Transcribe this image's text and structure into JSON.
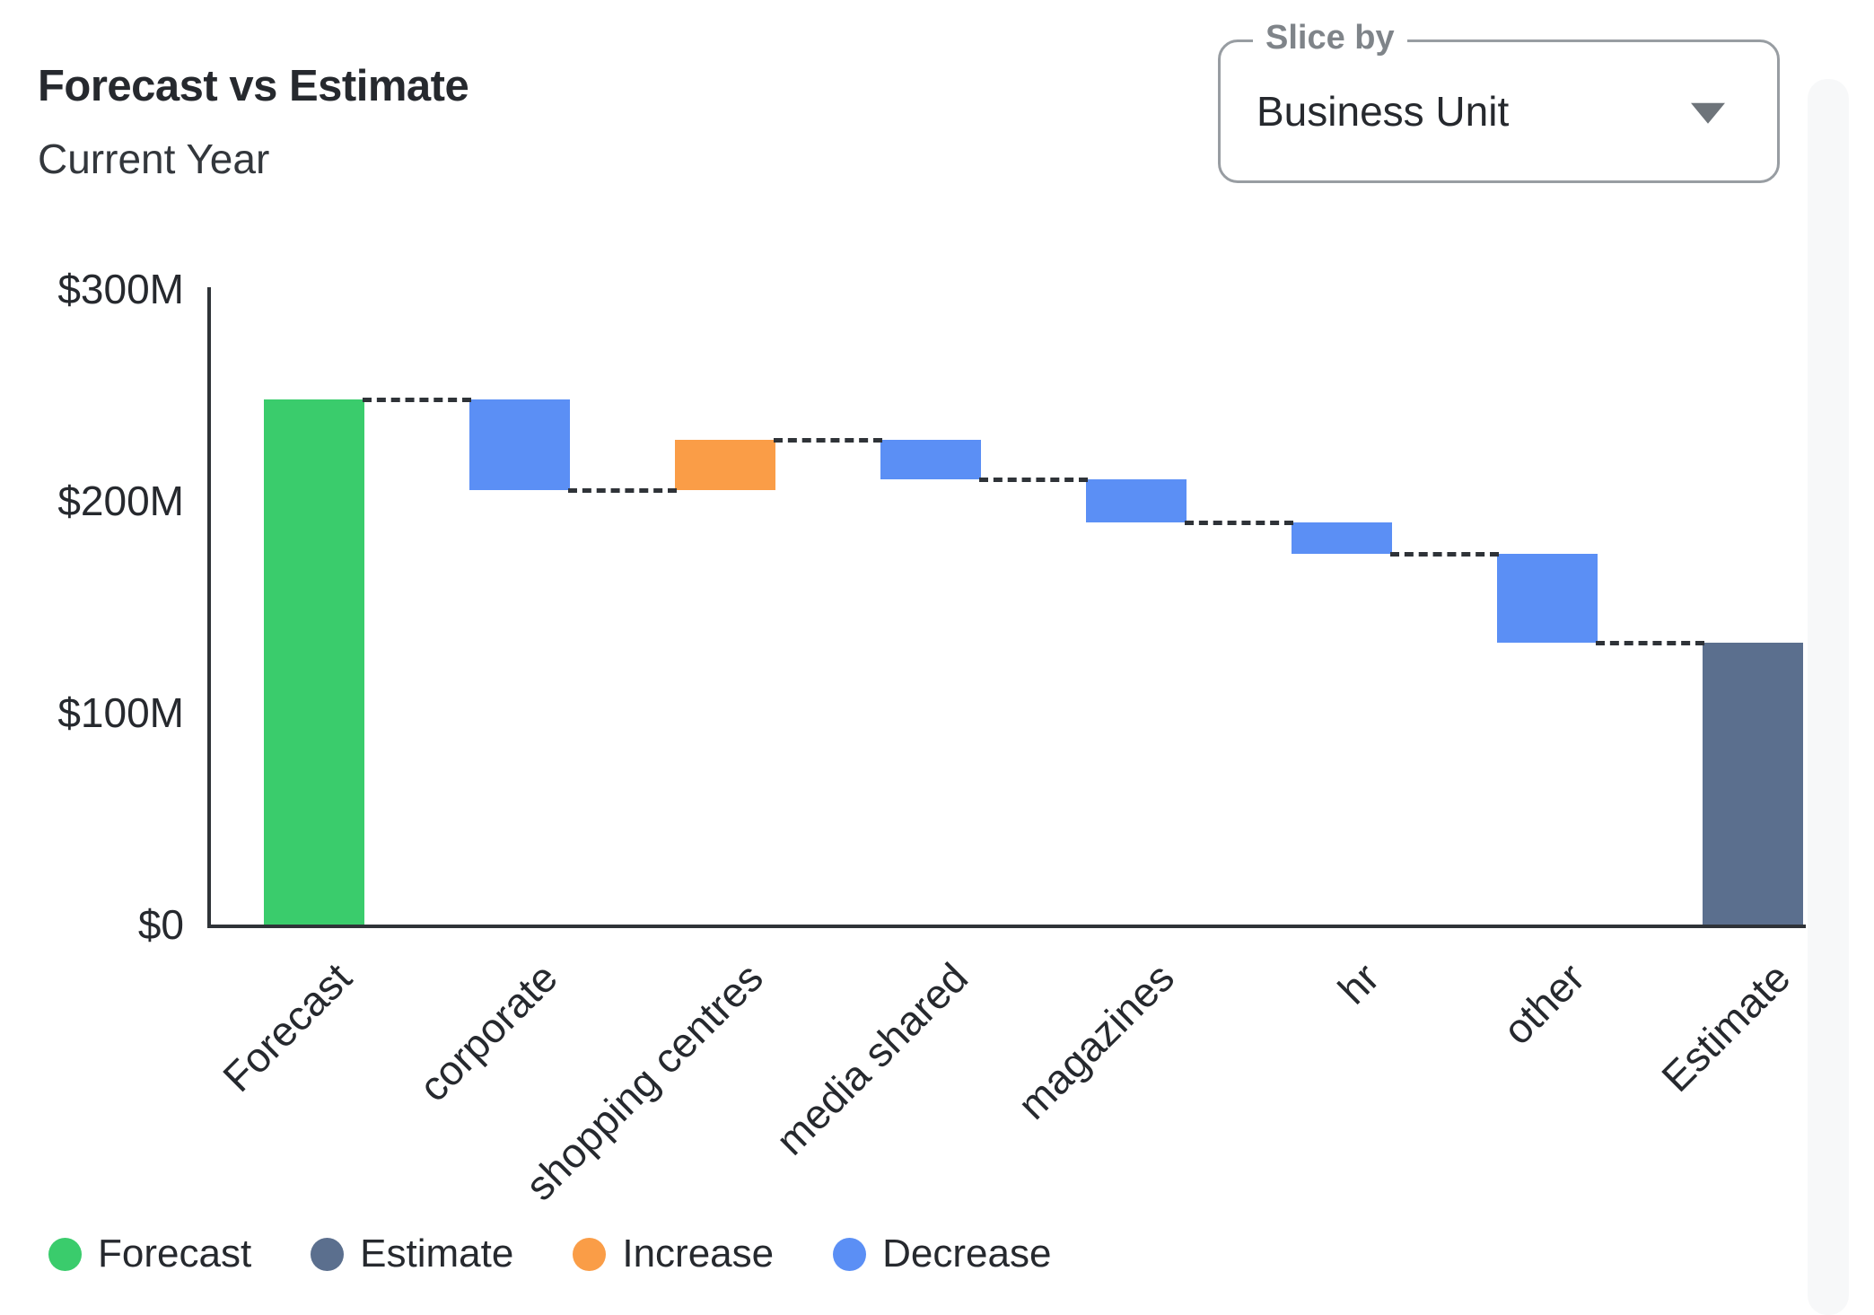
{
  "header": {
    "title": "Forecast vs Estimate",
    "subtitle": "Current Year"
  },
  "slice_by": {
    "label": "Slice by",
    "value": "Business Unit"
  },
  "colors": {
    "forecast": "#3ACC6C",
    "estimate": "#5B6F8E",
    "increase": "#FA9D47",
    "decrease": "#5B8FF5",
    "axis": "#2F3338",
    "connector": "#2F3338",
    "text": "#26292E",
    "muted_label": "#7F8489",
    "dropdown_border": "#989DA2"
  },
  "legend": {
    "items": [
      {
        "label": "Forecast",
        "color_key": "forecast"
      },
      {
        "label": "Estimate",
        "color_key": "estimate"
      },
      {
        "label": "Increase",
        "color_key": "increase"
      },
      {
        "label": "Decrease",
        "color_key": "decrease"
      }
    ]
  },
  "chart_data": {
    "type": "bar",
    "subtype": "waterfall",
    "title": "Forecast vs Estimate",
    "subtitle": "Current Year",
    "unit": "$M",
    "ylim": [
      0,
      300
    ],
    "grid": false,
    "legend_position": "bottom-left",
    "connector_style": "dashed",
    "y_ticks": [
      {
        "label": "$300M",
        "value": 300
      },
      {
        "label": "$200M",
        "value": 200
      },
      {
        "label": "$100M",
        "value": 100
      },
      {
        "label": "$0",
        "value": 0
      }
    ],
    "categories": [
      "Forecast",
      "corporate",
      "shopping centres",
      "media shared",
      "magazines",
      "hr",
      "other",
      "Estimate"
    ],
    "bars": [
      {
        "category": "Forecast",
        "kind": "forecast",
        "start": 0,
        "end": 248,
        "delta": 248
      },
      {
        "category": "corporate",
        "kind": "decrease",
        "start": 248,
        "end": 205,
        "delta": -43
      },
      {
        "category": "shopping centres",
        "kind": "increase",
        "start": 205,
        "end": 229,
        "delta": 24
      },
      {
        "category": "media shared",
        "kind": "decrease",
        "start": 229,
        "end": 210,
        "delta": -19
      },
      {
        "category": "magazines",
        "kind": "decrease",
        "start": 210,
        "end": 190,
        "delta": -20
      },
      {
        "category": "hr",
        "kind": "decrease",
        "start": 190,
        "end": 175,
        "delta": -15
      },
      {
        "category": "other",
        "kind": "decrease",
        "start": 175,
        "end": 133,
        "delta": -42
      },
      {
        "category": "Estimate",
        "kind": "estimate",
        "start": 0,
        "end": 133,
        "delta": 133
      }
    ]
  }
}
